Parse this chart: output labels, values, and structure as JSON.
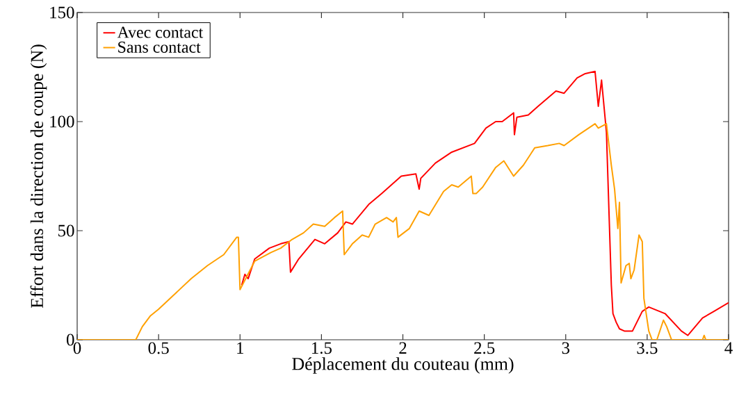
{
  "chart_data": {
    "type": "line",
    "xlabel": "Déplacement du couteau (mm)",
    "ylabel": "Effort dans la direction de coupe (N)",
    "xlim": [
      0,
      4
    ],
    "ylim": [
      0,
      150
    ],
    "xticks": [
      0,
      0.5,
      1,
      1.5,
      2,
      2.5,
      3,
      3.5,
      4
    ],
    "yticks": [
      0,
      50,
      100,
      150
    ],
    "grid": false,
    "legend": "top left",
    "line_style": "solid",
    "series": [
      {
        "name": "Avec contact",
        "color": "#ff0000",
        "x": [
          1.01,
          1.03,
          1.05,
          1.09,
          1.18,
          1.25,
          1.3,
          1.31,
          1.36,
          1.46,
          1.52,
          1.6,
          1.65,
          1.69,
          1.79,
          1.87,
          1.99,
          2.08,
          2.1,
          2.11,
          2.2,
          2.3,
          2.44,
          2.51,
          2.57,
          2.61,
          2.68,
          2.685,
          2.7,
          2.77,
          2.83,
          2.94,
          2.99,
          3.07,
          3.12,
          3.18,
          3.2,
          3.22,
          3.25,
          3.28,
          3.29,
          3.31,
          3.33,
          3.36,
          3.41,
          3.47,
          3.51,
          3.61,
          3.71,
          3.75,
          3.84,
          3.91,
          4.0
        ],
        "values": [
          25,
          30,
          28,
          37,
          42,
          44,
          45,
          31,
          37,
          46,
          44,
          49,
          54,
          53,
          62,
          67,
          75,
          76,
          69,
          74,
          81,
          86,
          90,
          97,
          100,
          100,
          104,
          94,
          102,
          103,
          107,
          114,
          113,
          120,
          122,
          123,
          107,
          119,
          95,
          25,
          12,
          8,
          5,
          4,
          4,
          13,
          15,
          12,
          4,
          2,
          10,
          13,
          17
        ]
      },
      {
        "name": "Sans contact",
        "color": "#ffa000",
        "x": [
          0,
          0.36,
          0.4,
          0.45,
          0.5,
          0.6,
          0.7,
          0.8,
          0.9,
          0.98,
          0.99,
          1.0,
          1.09,
          1.19,
          1.25,
          1.32,
          1.39,
          1.45,
          1.52,
          1.58,
          1.63,
          1.64,
          1.69,
          1.75,
          1.79,
          1.83,
          1.9,
          1.94,
          1.96,
          1.97,
          2.04,
          2.1,
          2.16,
          2.25,
          2.3,
          2.34,
          2.42,
          2.43,
          2.45,
          2.49,
          2.57,
          2.62,
          2.68,
          2.74,
          2.81,
          2.89,
          2.96,
          2.99,
          3.08,
          3.18,
          3.2,
          3.25,
          3.28,
          3.3,
          3.32,
          3.33,
          3.34,
          3.37,
          3.39,
          3.4,
          3.42,
          3.45,
          3.47,
          3.48,
          3.51,
          3.53,
          3.56,
          3.6,
          3.62,
          3.65,
          3.84,
          3.85,
          3.86,
          4.0
        ],
        "values": [
          0,
          0,
          6,
          11,
          14,
          21,
          28,
          34,
          39,
          47,
          47,
          23,
          36,
          40,
          42,
          46,
          49,
          53,
          52,
          56,
          59,
          39,
          44,
          48,
          47,
          53,
          56,
          54,
          56,
          47,
          51,
          59,
          57,
          68,
          71,
          70,
          75,
          67,
          67,
          70,
          79,
          82,
          75,
          80,
          88,
          89,
          90,
          89,
          94,
          99,
          97,
          99,
          80,
          69,
          51,
          63,
          26,
          34,
          35,
          28,
          32,
          48,
          45,
          19,
          4,
          0,
          0,
          9,
          6,
          0,
          0,
          2,
          0,
          0
        ]
      }
    ]
  }
}
